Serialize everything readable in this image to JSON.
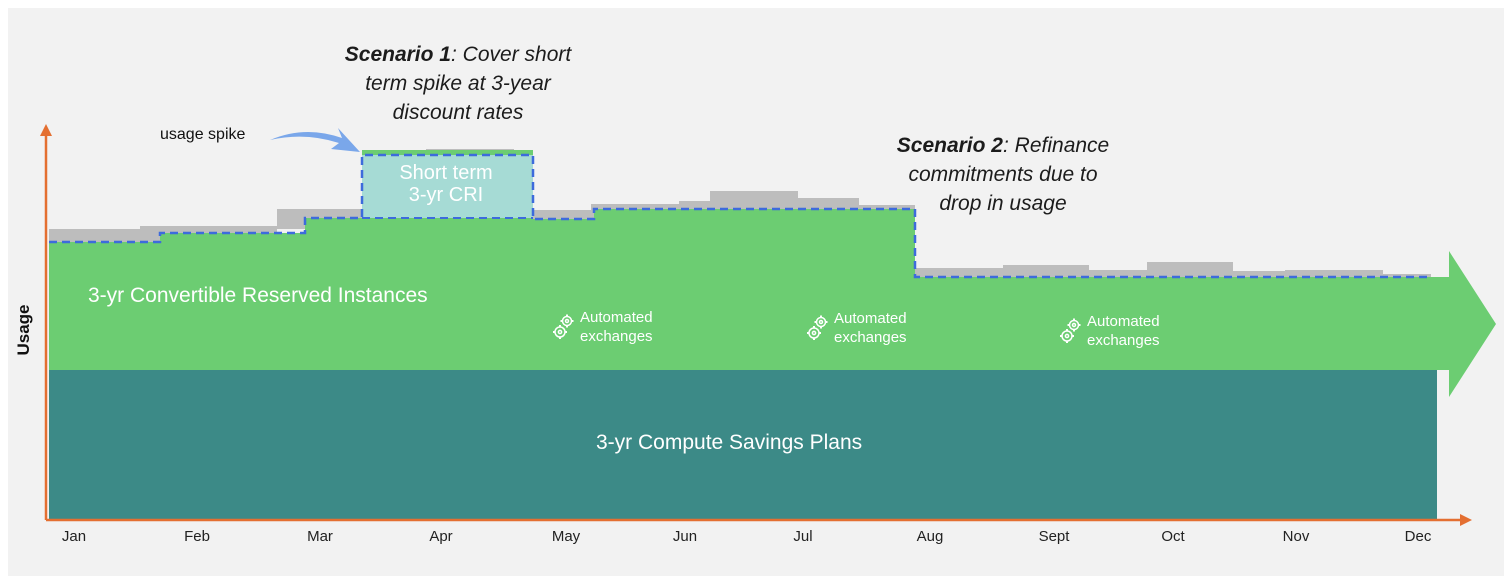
{
  "y_axis_label": "Usage",
  "months": [
    "Jan",
    "Feb",
    "Mar",
    "Apr",
    "May",
    "Jun",
    "Jul",
    "Aug",
    "Sept",
    "Oct",
    "Nov",
    "Dec"
  ],
  "bands": {
    "convertible_ri": "3-yr Convertible Reserved Instances",
    "savings_plans": "3-yr Compute Savings Plans",
    "short_term_cri_line1": "Short term",
    "short_term_cri_line2": "3-yr CRI"
  },
  "scenario1": {
    "bold": "Scenario 1",
    "rest": ": Cover short",
    "line2": "term spike at 3-year",
    "line3": "discount rates"
  },
  "scenario2": {
    "bold": "Scenario 2",
    "rest": ": Refinance",
    "line2": "commitments due to",
    "line3": "drop in usage"
  },
  "usage_spike_label": "usage spike",
  "automated_exchanges": [
    {
      "line1": "Automated",
      "line2": "exchanges"
    },
    {
      "line1": "Automated",
      "line2": "exchanges"
    },
    {
      "line1": "Automated",
      "line2": "exchanges"
    }
  ],
  "colors": {
    "panel": "#f2f2f2",
    "savings_plans": "#3c8a87",
    "convertible_ri": "#6ccd72",
    "short_term_cri": "#a6dbd5",
    "usage": "#bdbdbd",
    "commitment_line": "#3d6bdc",
    "axis": "#e46f31",
    "spike_arrow": "#7aa7ea"
  },
  "icons": [
    "gears-icon",
    "curved-arrow-icon"
  ]
}
